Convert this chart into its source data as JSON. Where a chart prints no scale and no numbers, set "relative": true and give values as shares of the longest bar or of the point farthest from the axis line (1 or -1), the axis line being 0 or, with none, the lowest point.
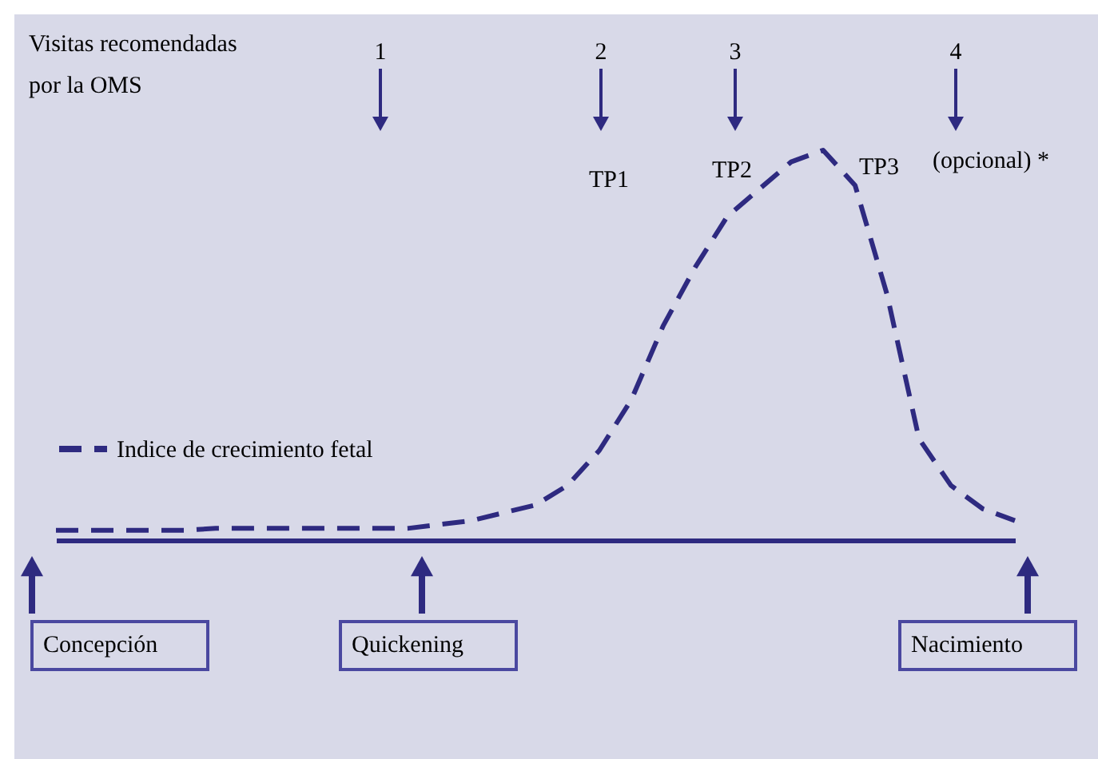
{
  "chart_data": {
    "type": "line",
    "relative": true,
    "categories": [
      null,
      null,
      null,
      null,
      null,
      null,
      null,
      null,
      null,
      null,
      null,
      null,
      null,
      null,
      null,
      null,
      null,
      null,
      null,
      null,
      null,
      null,
      null,
      null,
      null,
      null,
      null,
      null,
      null,
      null,
      null
    ],
    "series": [
      {
        "name": "Indice de crecimiento fetal",
        "color": "#2e2a80",
        "values": [
          0.025,
          0.025,
          0.025,
          0.025,
          0.025,
          0.03,
          0.03,
          0.03,
          0.03,
          0.03,
          0.03,
          0.03,
          0.04,
          0.05,
          0.07,
          0.09,
          0.14,
          0.23,
          0.36,
          0.55,
          0.7,
          0.83,
          0.9,
          0.97,
          1,
          0.91,
          0.63,
          0.26,
          0.14,
          0.08,
          0.05
        ]
      }
    ],
    "line_style": "dashed",
    "legend": "left",
    "annotations": [
      "Visitas recomendadas por la OMS",
      "1",
      "2",
      "3",
      "4",
      "TP1",
      "TP2",
      "TP3",
      "(opcional) *",
      "Concepción",
      "Quickening",
      "Nacimiento"
    ]
  }
}
